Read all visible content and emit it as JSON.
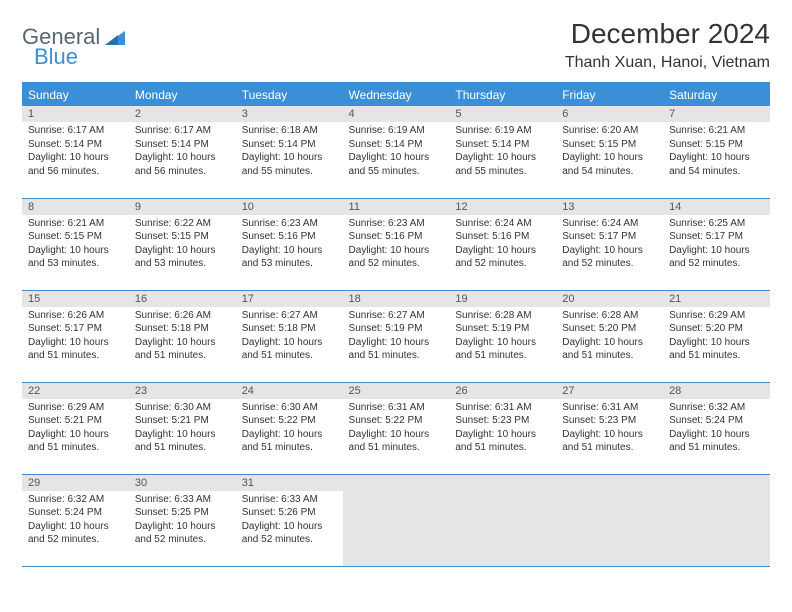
{
  "brand": {
    "word1": "General",
    "word2": "Blue"
  },
  "title": "December 2024",
  "location": "Thanh Xuan, Hanoi, Vietnam",
  "colors": {
    "accent": "#3b8fd6",
    "header_text": "#ffffff",
    "daynum_bg": "#e5e5e5",
    "body_text": "#333333",
    "logo_gray": "#5a6670"
  },
  "dayHeaders": [
    "Sunday",
    "Monday",
    "Tuesday",
    "Wednesday",
    "Thursday",
    "Friday",
    "Saturday"
  ],
  "weeks": [
    [
      {
        "n": "1",
        "sr": "6:17 AM",
        "ss": "5:14 PM",
        "dl": "10 hours and 56 minutes."
      },
      {
        "n": "2",
        "sr": "6:17 AM",
        "ss": "5:14 PM",
        "dl": "10 hours and 56 minutes."
      },
      {
        "n": "3",
        "sr": "6:18 AM",
        "ss": "5:14 PM",
        "dl": "10 hours and 55 minutes."
      },
      {
        "n": "4",
        "sr": "6:19 AM",
        "ss": "5:14 PM",
        "dl": "10 hours and 55 minutes."
      },
      {
        "n": "5",
        "sr": "6:19 AM",
        "ss": "5:14 PM",
        "dl": "10 hours and 55 minutes."
      },
      {
        "n": "6",
        "sr": "6:20 AM",
        "ss": "5:15 PM",
        "dl": "10 hours and 54 minutes."
      },
      {
        "n": "7",
        "sr": "6:21 AM",
        "ss": "5:15 PM",
        "dl": "10 hours and 54 minutes."
      }
    ],
    [
      {
        "n": "8",
        "sr": "6:21 AM",
        "ss": "5:15 PM",
        "dl": "10 hours and 53 minutes."
      },
      {
        "n": "9",
        "sr": "6:22 AM",
        "ss": "5:15 PM",
        "dl": "10 hours and 53 minutes."
      },
      {
        "n": "10",
        "sr": "6:23 AM",
        "ss": "5:16 PM",
        "dl": "10 hours and 53 minutes."
      },
      {
        "n": "11",
        "sr": "6:23 AM",
        "ss": "5:16 PM",
        "dl": "10 hours and 52 minutes."
      },
      {
        "n": "12",
        "sr": "6:24 AM",
        "ss": "5:16 PM",
        "dl": "10 hours and 52 minutes."
      },
      {
        "n": "13",
        "sr": "6:24 AM",
        "ss": "5:17 PM",
        "dl": "10 hours and 52 minutes."
      },
      {
        "n": "14",
        "sr": "6:25 AM",
        "ss": "5:17 PM",
        "dl": "10 hours and 52 minutes."
      }
    ],
    [
      {
        "n": "15",
        "sr": "6:26 AM",
        "ss": "5:17 PM",
        "dl": "10 hours and 51 minutes."
      },
      {
        "n": "16",
        "sr": "6:26 AM",
        "ss": "5:18 PM",
        "dl": "10 hours and 51 minutes."
      },
      {
        "n": "17",
        "sr": "6:27 AM",
        "ss": "5:18 PM",
        "dl": "10 hours and 51 minutes."
      },
      {
        "n": "18",
        "sr": "6:27 AM",
        "ss": "5:19 PM",
        "dl": "10 hours and 51 minutes."
      },
      {
        "n": "19",
        "sr": "6:28 AM",
        "ss": "5:19 PM",
        "dl": "10 hours and 51 minutes."
      },
      {
        "n": "20",
        "sr": "6:28 AM",
        "ss": "5:20 PM",
        "dl": "10 hours and 51 minutes."
      },
      {
        "n": "21",
        "sr": "6:29 AM",
        "ss": "5:20 PM",
        "dl": "10 hours and 51 minutes."
      }
    ],
    [
      {
        "n": "22",
        "sr": "6:29 AM",
        "ss": "5:21 PM",
        "dl": "10 hours and 51 minutes."
      },
      {
        "n": "23",
        "sr": "6:30 AM",
        "ss": "5:21 PM",
        "dl": "10 hours and 51 minutes."
      },
      {
        "n": "24",
        "sr": "6:30 AM",
        "ss": "5:22 PM",
        "dl": "10 hours and 51 minutes."
      },
      {
        "n": "25",
        "sr": "6:31 AM",
        "ss": "5:22 PM",
        "dl": "10 hours and 51 minutes."
      },
      {
        "n": "26",
        "sr": "6:31 AM",
        "ss": "5:23 PM",
        "dl": "10 hours and 51 minutes."
      },
      {
        "n": "27",
        "sr": "6:31 AM",
        "ss": "5:23 PM",
        "dl": "10 hours and 51 minutes."
      },
      {
        "n": "28",
        "sr": "6:32 AM",
        "ss": "5:24 PM",
        "dl": "10 hours and 51 minutes."
      }
    ],
    [
      {
        "n": "29",
        "sr": "6:32 AM",
        "ss": "5:24 PM",
        "dl": "10 hours and 52 minutes."
      },
      {
        "n": "30",
        "sr": "6:33 AM",
        "ss": "5:25 PM",
        "dl": "10 hours and 52 minutes."
      },
      {
        "n": "31",
        "sr": "6:33 AM",
        "ss": "5:26 PM",
        "dl": "10 hours and 52 minutes."
      },
      null,
      null,
      null,
      null
    ]
  ],
  "labels": {
    "sunrise": "Sunrise:",
    "sunset": "Sunset:",
    "daylight": "Daylight:"
  }
}
